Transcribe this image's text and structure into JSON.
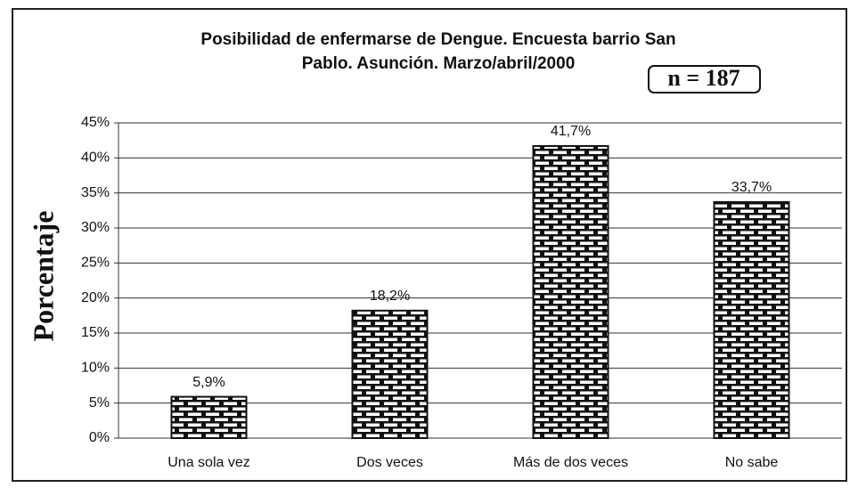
{
  "chart_data": {
    "type": "bar",
    "title": [
      "Posibilidad de enfermarse de Dengue. Encuesta barrio San",
      "Pablo. Asunción. Marzo/abril/2000"
    ],
    "annotation": "n = 187",
    "y_label": "Porcentaje",
    "categories": [
      "Una sola vez",
      "Dos veces",
      "Más de dos veces",
      "No sabe"
    ],
    "values": [
      5.9,
      18.2,
      41.7,
      33.7
    ],
    "value_labels": [
      "5,9%",
      "18,2%",
      "41,7%",
      "33,7%"
    ],
    "color": "#111111",
    "ylim": [
      0,
      45
    ],
    "yticks": [
      {
        "value": 0,
        "label": "0%"
      },
      {
        "value": 5,
        "label": "5%"
      },
      {
        "value": 10,
        "label": "10%"
      },
      {
        "value": 15,
        "label": "15%"
      },
      {
        "value": 20,
        "label": "20%"
      },
      {
        "value": 25,
        "label": "25%"
      },
      {
        "value": 30,
        "label": "30%"
      },
      {
        "value": 35,
        "label": "35%"
      },
      {
        "value": 40,
        "label": "40%"
      },
      {
        "value": 45,
        "label": "45%"
      }
    ],
    "grid": true
  }
}
